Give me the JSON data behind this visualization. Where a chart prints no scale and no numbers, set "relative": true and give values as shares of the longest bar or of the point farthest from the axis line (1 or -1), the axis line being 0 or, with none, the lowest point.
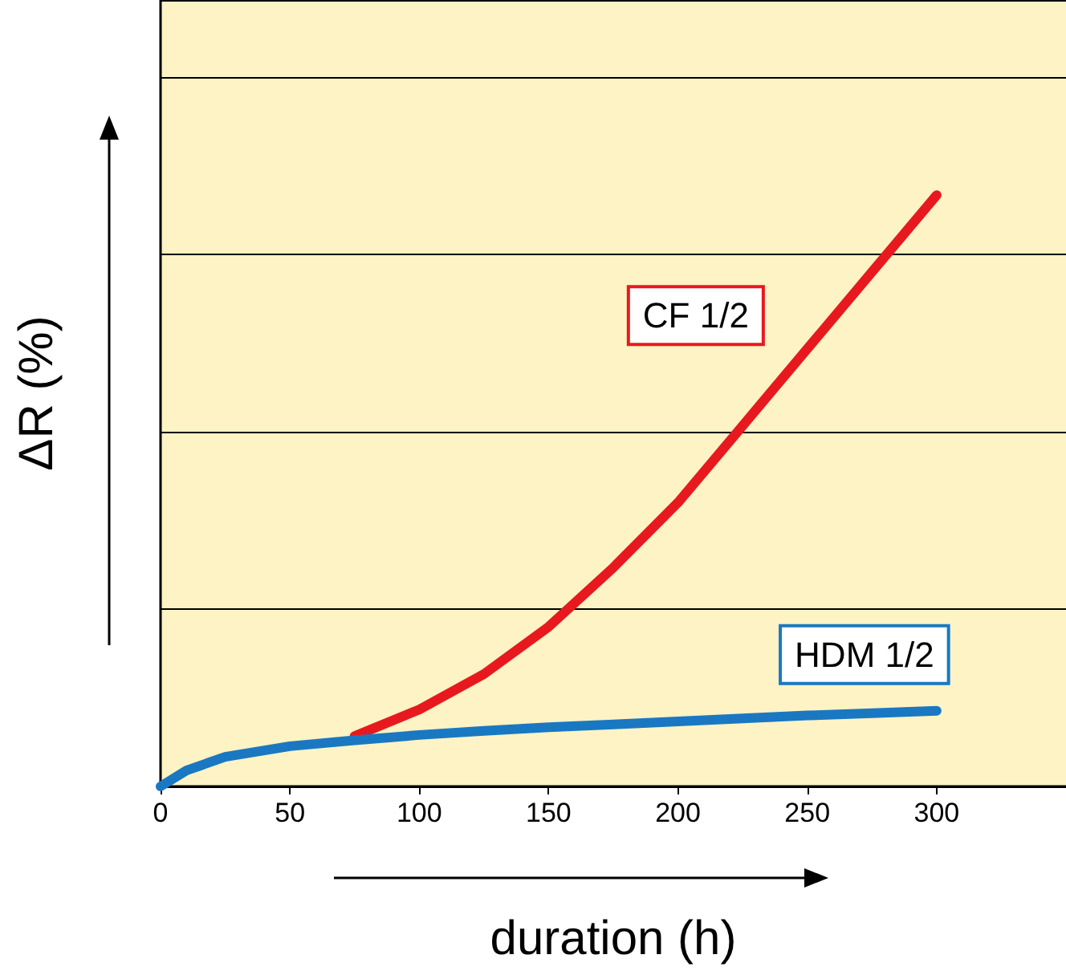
{
  "chart_data": {
    "type": "line",
    "relative": true,
    "xlabel": "duration (h)",
    "ylabel": "ΔR (%)",
    "x": [
      0,
      10,
      25,
      50,
      75,
      100,
      125,
      150,
      175,
      200,
      225,
      250,
      275,
      300
    ],
    "xlim": [
      0,
      350
    ],
    "xticks": [
      0,
      50,
      100,
      150,
      200,
      250,
      300
    ],
    "grid": "y",
    "legend": false,
    "marker": "none",
    "line_style": "solid",
    "series": [
      {
        "name": "CF 1/2",
        "color": "#e8191e",
        "x": [
          75,
          100,
          125,
          150,
          175,
          200,
          225,
          250,
          275,
          300
        ],
        "values": [
          0.085,
          0.13,
          0.19,
          0.27,
          0.37,
          0.48,
          0.61,
          0.74,
          0.87,
          1
        ]
      },
      {
        "name": "HDM 1/2",
        "color": "#1a78c2",
        "values": [
          0,
          0.027,
          0.05,
          0.068,
          0.078,
          0.087,
          0.094,
          0.1,
          0.105,
          0.11,
          0.115,
          0.12,
          0.124,
          0.128
        ]
      }
    ]
  }
}
